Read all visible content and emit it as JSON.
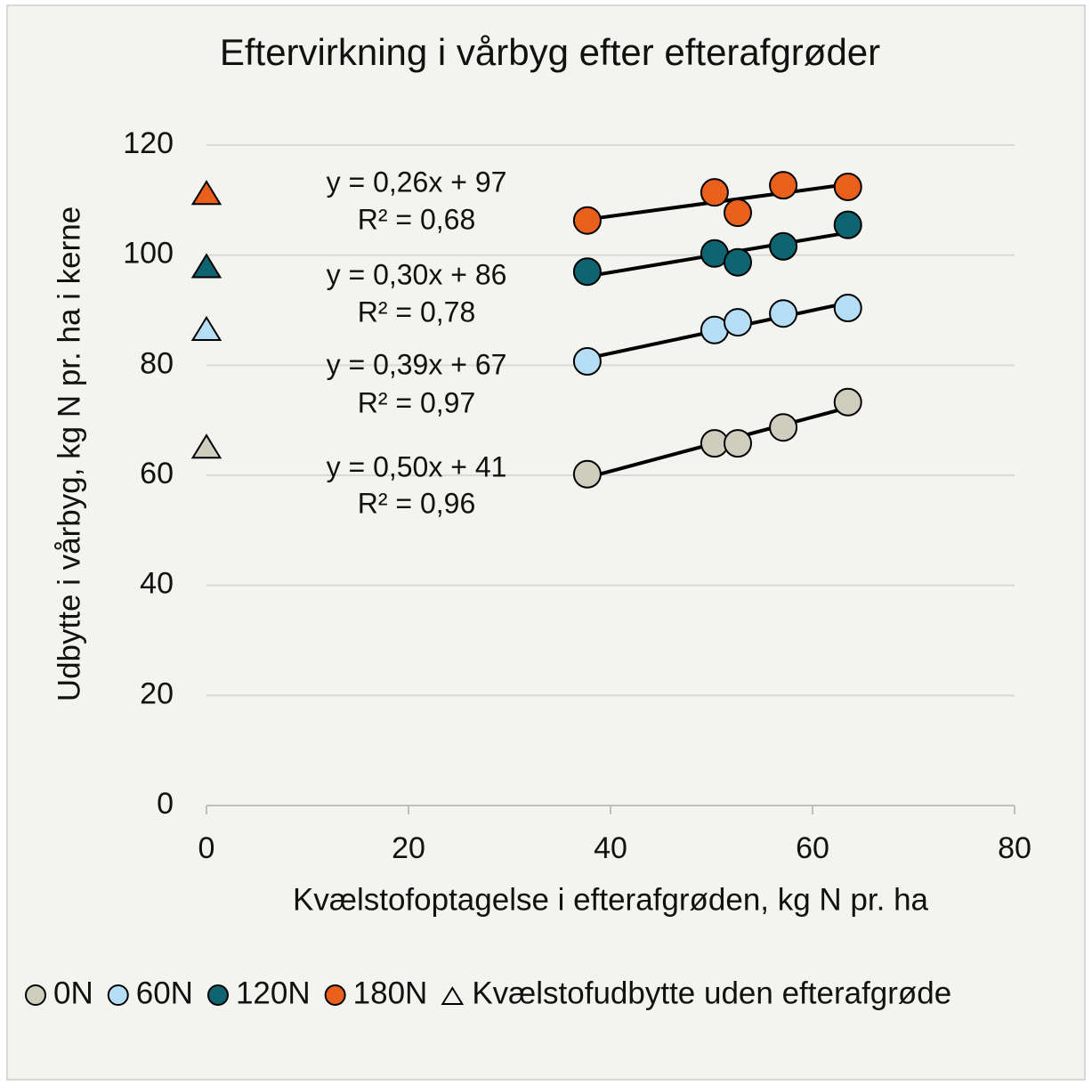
{
  "chart_data": {
    "type": "scatter",
    "title": "Eftervirkning i vårbyg efter efterafgrøder",
    "x_label": "Kvælstofoptagelse i efterafgrøden, kg N pr. ha",
    "y_label": "Udbytte i vårbyg,  kg N pr. ha i kerne",
    "xlim": [
      0,
      80
    ],
    "xticks": [
      0,
      20,
      40,
      60,
      80
    ],
    "ylim": [
      0,
      120
    ],
    "yticks": [
      0,
      20,
      40,
      60,
      80,
      100,
      120
    ],
    "grid": true,
    "legend": "bottom",
    "series": [
      {
        "name": "0N",
        "color": "#cfcdbd",
        "x": [
          37.7,
          50.3,
          52.6,
          57.1,
          63.5
        ],
        "values": [
          60.2,
          65.8,
          65.8,
          68.7,
          73.3
        ],
        "equation": "y = 0,50x + 41",
        "r_squared": "R² = 0,96"
      },
      {
        "name": "60N",
        "color": "#b5ddf5",
        "x": [
          37.7,
          50.3,
          52.6,
          57.1,
          63.5
        ],
        "values": [
          80.7,
          86.4,
          87.8,
          89.4,
          90.4
        ],
        "equation": "y = 0,39x + 67",
        "r_squared": "R² = 0,97"
      },
      {
        "name": "120N",
        "color": "#0e6470",
        "x": [
          37.7,
          50.3,
          52.6,
          57.1,
          63.5
        ],
        "values": [
          97.0,
          100.3,
          98.7,
          101.6,
          105.5
        ],
        "equation": "y = 0,30x + 86",
        "r_squared": "R² = 0,78"
      },
      {
        "name": "180N",
        "color": "#e8601c",
        "x": [
          37.7,
          50.3,
          52.6,
          57.1,
          63.5
        ],
        "values": [
          106.3,
          111.4,
          107.7,
          112.7,
          112.4
        ],
        "equation": "y = 0,26x + 97",
        "r_squared": "R² = 0,68"
      }
    ],
    "reference": {
      "name": "Kvælstofudbytte uden efterafgrøde",
      "x": [
        0,
        0,
        0,
        0
      ],
      "values": [
        65.0,
        86.4,
        97.8,
        111.1
      ],
      "colors": [
        "#cfcdbd",
        "#b5ddf5",
        "#0e6470",
        "#e8601c"
      ]
    }
  }
}
